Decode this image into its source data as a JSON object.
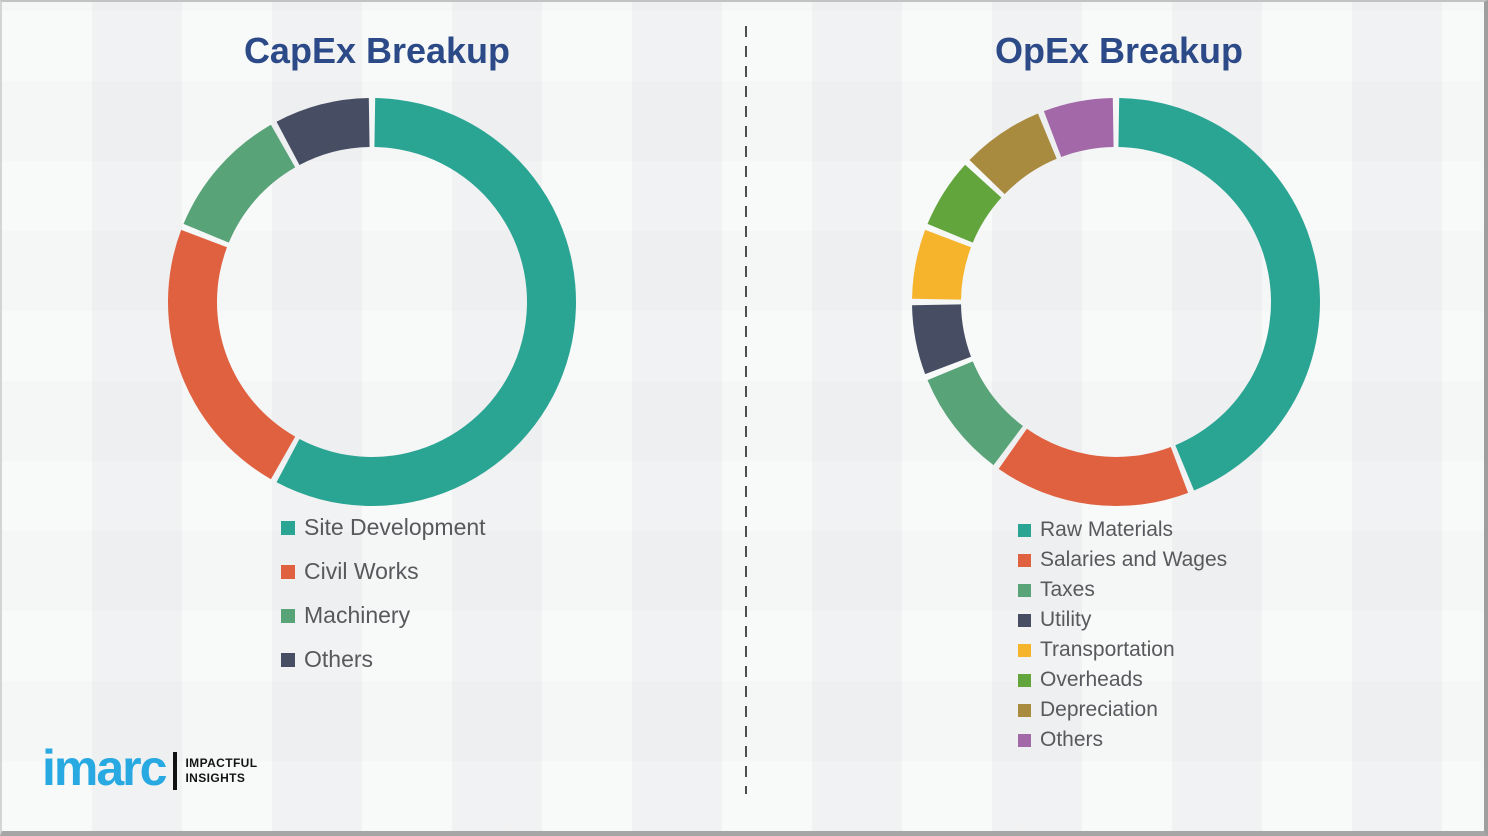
{
  "branding": {
    "logo_text": "imarc",
    "tagline_line1": "IMPACTFUL",
    "tagline_line2": "INSIGHTS",
    "logo_color": "#29a9e1"
  },
  "theme": {
    "background": "#f3f4f4",
    "title_color": "#2c4a87",
    "legend_text_color": "#57595c",
    "divider_color": "#4e4e4e"
  },
  "chart_data": [
    {
      "type": "pie",
      "subtype": "donut",
      "title": "CapEx Breakup",
      "labels": [
        "Site Development",
        "Civil Works",
        "Machinery",
        "Others"
      ],
      "values": [
        58,
        23,
        11,
        8
      ],
      "colors": [
        "#2aa493",
        "#e0613f",
        "#58a378",
        "#474e63"
      ],
      "start_angle": 0,
      "direction": "clockwise",
      "hole_radius_ratio": 0.76,
      "legend_position": "below"
    },
    {
      "type": "pie",
      "subtype": "donut",
      "title": "OpEx Breakup",
      "labels": [
        "Raw Materials",
        "Salaries and Wages",
        "Taxes",
        "Utility",
        "Transportation",
        "Overheads",
        "Depreciation",
        "Others"
      ],
      "values": [
        44,
        16,
        9,
        6,
        6,
        6,
        7,
        6
      ],
      "colors": [
        "#2aa493",
        "#e0613f",
        "#58a378",
        "#474e63",
        "#f6b42d",
        "#63a53d",
        "#a98b40",
        "#a268a8"
      ],
      "start_angle": 0,
      "direction": "clockwise",
      "hole_radius_ratio": 0.76,
      "legend_position": "below"
    }
  ]
}
